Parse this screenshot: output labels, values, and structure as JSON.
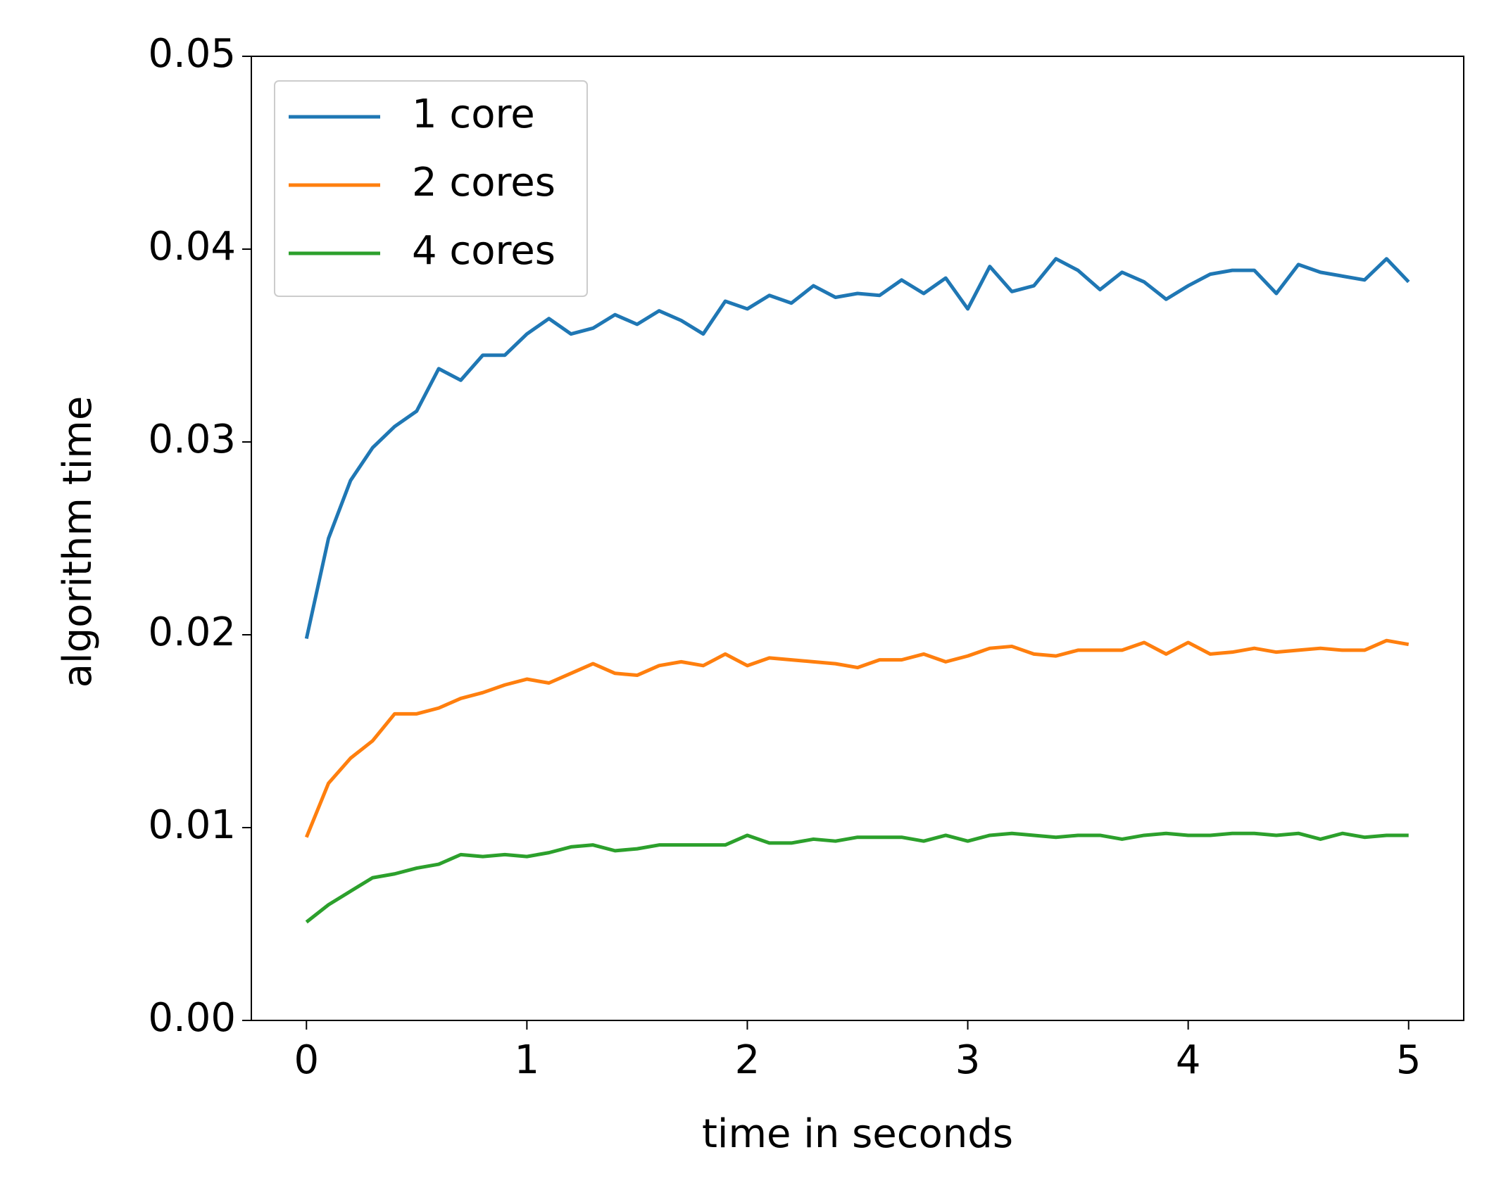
{
  "chart_data": {
    "type": "line",
    "xlabel": "time in seconds",
    "ylabel": "algorithm time",
    "x": [
      0,
      0.1,
      0.2,
      0.3,
      0.4,
      0.5,
      0.6,
      0.7,
      0.8,
      0.9,
      1,
      1.1,
      1.2,
      1.3,
      1.4,
      1.5,
      1.6,
      1.7,
      1.8,
      1.9,
      2,
      2.1,
      2.2,
      2.3,
      2.4,
      2.5,
      2.6,
      2.7,
      2.8,
      2.9,
      3,
      3.1,
      3.2,
      3.3,
      3.4,
      3.5,
      3.6,
      3.7,
      3.8,
      3.9,
      4,
      4.1,
      4.2,
      4.3,
      4.4,
      4.5,
      4.6,
      4.7,
      4.8,
      4.9,
      5
    ],
    "series": [
      {
        "name": "1 core",
        "color": "#1f77b4",
        "values": [
          0.0198,
          0.025,
          0.028,
          0.0297,
          0.0308,
          0.0316,
          0.0338,
          0.0332,
          0.0345,
          0.0345,
          0.0356,
          0.0364,
          0.0356,
          0.0359,
          0.0366,
          0.0361,
          0.0368,
          0.0363,
          0.0356,
          0.0373,
          0.0369,
          0.0376,
          0.0372,
          0.0381,
          0.0375,
          0.0377,
          0.0376,
          0.0384,
          0.0377,
          0.0385,
          0.0369,
          0.0391,
          0.0378,
          0.0381,
          0.0395,
          0.0389,
          0.0379,
          0.0388,
          0.0383,
          0.0374,
          0.0381,
          0.0387,
          0.0389,
          0.0389,
          0.0377,
          0.0392,
          0.0388,
          0.0386,
          0.0384,
          0.0395,
          0.0383
        ]
      },
      {
        "name": "2 cores",
        "color": "#ff7f0e",
        "values": [
          0.0095,
          0.0123,
          0.0136,
          0.0145,
          0.0159,
          0.0159,
          0.0162,
          0.0167,
          0.017,
          0.0174,
          0.0177,
          0.0175,
          0.018,
          0.0185,
          0.018,
          0.0179,
          0.0184,
          0.0186,
          0.0184,
          0.019,
          0.0184,
          0.0188,
          0.0187,
          0.0186,
          0.0185,
          0.0183,
          0.0187,
          0.0187,
          0.019,
          0.0186,
          0.0189,
          0.0193,
          0.0194,
          0.019,
          0.0189,
          0.0192,
          0.0192,
          0.0192,
          0.0196,
          0.019,
          0.0196,
          0.019,
          0.0191,
          0.0193,
          0.0191,
          0.0192,
          0.0193,
          0.0192,
          0.0192,
          0.0197,
          0.0195
        ]
      },
      {
        "name": "4 cores",
        "color": "#2ca02c",
        "values": [
          0.0051,
          0.006,
          0.0067,
          0.0074,
          0.0076,
          0.0079,
          0.0081,
          0.0086,
          0.0085,
          0.0086,
          0.0085,
          0.0087,
          0.009,
          0.0091,
          0.0088,
          0.0089,
          0.0091,
          0.0091,
          0.0091,
          0.0091,
          0.0096,
          0.0092,
          0.0092,
          0.0094,
          0.0093,
          0.0095,
          0.0095,
          0.0095,
          0.0093,
          0.0096,
          0.0093,
          0.0096,
          0.0097,
          0.0096,
          0.0095,
          0.0096,
          0.0096,
          0.0094,
          0.0096,
          0.0097,
          0.0096,
          0.0096,
          0.0097,
          0.0097,
          0.0096,
          0.0097,
          0.0094,
          0.0097,
          0.0095,
          0.0096,
          0.0096
        ]
      }
    ],
    "xlim": [
      -0.25,
      5.25
    ],
    "xticks": [
      0,
      1,
      2,
      3,
      4,
      5
    ],
    "ylim": [
      0,
      0.05
    ],
    "yticks": [
      {
        "value": 0,
        "label": "0.00"
      },
      0.01,
      0.02,
      0.03,
      0.04,
      0.05
    ],
    "grid": false,
    "legend": "upper left"
  }
}
